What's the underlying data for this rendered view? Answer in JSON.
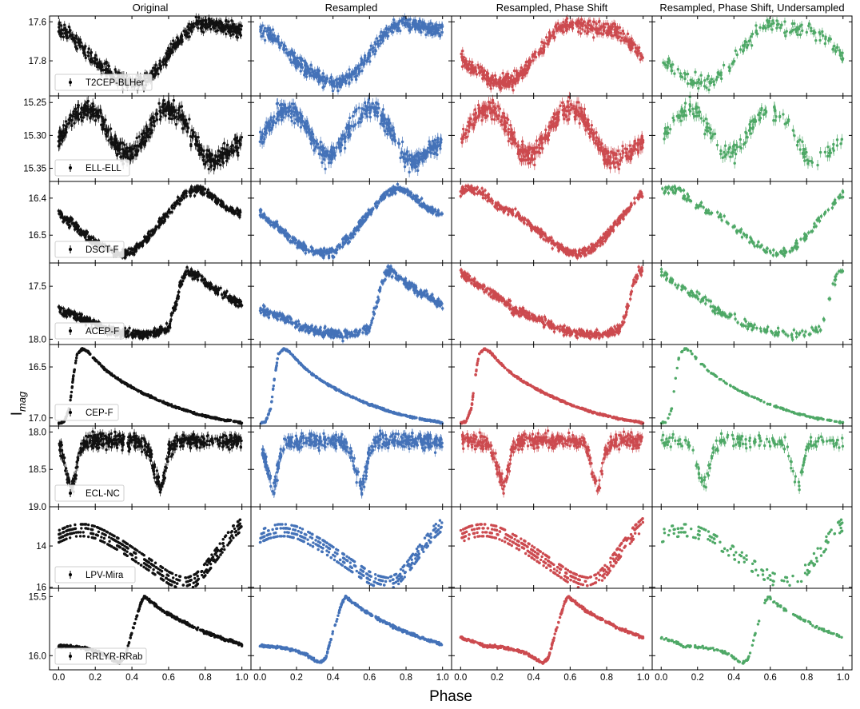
{
  "figure": {
    "xlabel": "Phase",
    "ylabel": "I",
    "ylabel_sub": "mag",
    "columns": [
      "Original",
      "Resampled",
      "Resampled, Phase Shift",
      "Resampled, Phase Shift, Undersampled"
    ],
    "column_colors": [
      "#111111",
      "#4472b8",
      "#cc4a4f",
      "#4ea866"
    ],
    "x_ticks": [
      "0.0",
      "0.2",
      "0.4",
      "0.6",
      "0.8",
      "1.0"
    ],
    "grid": false,
    "legend_position": "bottom-left"
  },
  "chart_data": [
    {
      "type": "scatter",
      "label": "T2CEP-BLHer",
      "ylim": [
        17.98,
        17.57
      ],
      "yticks": [
        17.6,
        17.8
      ],
      "ytick_labels": [
        "17.6",
        "17.8"
      ],
      "x": [
        0.0,
        0.05,
        0.1,
        0.15,
        0.2,
        0.25,
        0.3,
        0.35,
        0.4,
        0.45,
        0.5,
        0.55,
        0.6,
        0.65,
        0.7,
        0.75,
        0.8,
        0.85,
        0.9,
        0.95,
        1.0
      ],
      "y": [
        17.64,
        17.66,
        17.7,
        17.75,
        17.8,
        17.84,
        17.87,
        17.9,
        17.91,
        17.91,
        17.88,
        17.83,
        17.77,
        17.7,
        17.65,
        17.62,
        17.61,
        17.62,
        17.63,
        17.64,
        17.64
      ],
      "err": 0.025,
      "phase_shift": 0.18
    },
    {
      "type": "scatter",
      "label": "ELL-ELL",
      "ylim": [
        15.37,
        15.24
      ],
      "yticks": [
        15.25,
        15.3,
        15.35
      ],
      "ytick_labels": [
        "15.25",
        "15.30",
        "15.35"
      ],
      "x": [
        0.0,
        0.05,
        0.1,
        0.15,
        0.2,
        0.25,
        0.3,
        0.35,
        0.4,
        0.45,
        0.5,
        0.55,
        0.6,
        0.65,
        0.7,
        0.75,
        0.8,
        0.85,
        0.9,
        0.95,
        1.0
      ],
      "y": [
        15.31,
        15.285,
        15.265,
        15.26,
        15.265,
        15.285,
        15.31,
        15.33,
        15.33,
        15.31,
        15.285,
        15.265,
        15.26,
        15.265,
        15.285,
        15.31,
        15.335,
        15.34,
        15.33,
        15.32,
        15.31
      ],
      "err": 0.01,
      "phase_shift": 0.0
    },
    {
      "type": "scatter",
      "label": "DSCT-F",
      "ylim": [
        16.575,
        16.355
      ],
      "yticks": [
        16.4,
        16.5
      ],
      "ytick_labels": [
        "16.4",
        "16.5"
      ],
      "x": [
        0.0,
        0.05,
        0.1,
        0.15,
        0.2,
        0.25,
        0.3,
        0.35,
        0.4,
        0.45,
        0.5,
        0.55,
        0.6,
        0.65,
        0.7,
        0.75,
        0.8,
        0.85,
        0.9,
        0.95,
        1.0
      ],
      "y": [
        16.44,
        16.46,
        16.48,
        16.5,
        16.52,
        16.535,
        16.545,
        16.55,
        16.545,
        16.525,
        16.5,
        16.47,
        16.44,
        16.41,
        16.385,
        16.375,
        16.38,
        16.4,
        16.42,
        16.435,
        16.44
      ],
      "err": 0.008,
      "phase_shift": -0.3
    },
    {
      "type": "scatter",
      "label": "ACEP-F",
      "ylim": [
        18.05,
        17.28
      ],
      "yticks": [
        17.5,
        18.0
      ],
      "ytick_labels": [
        "17.5",
        "18.0"
      ],
      "x": [
        0.0,
        0.05,
        0.1,
        0.15,
        0.2,
        0.25,
        0.3,
        0.35,
        0.4,
        0.45,
        0.5,
        0.55,
        0.6,
        0.65,
        0.66,
        0.7,
        0.75,
        0.8,
        0.85,
        0.9,
        0.95,
        1.0
      ],
      "y": [
        17.72,
        17.75,
        17.78,
        17.82,
        17.86,
        17.9,
        17.92,
        17.94,
        17.95,
        17.96,
        17.95,
        17.93,
        17.9,
        17.6,
        17.5,
        17.35,
        17.4,
        17.47,
        17.53,
        17.58,
        17.63,
        17.68
      ],
      "err": 0.03,
      "phase_shift": -0.28
    },
    {
      "type": "scatter",
      "label": "CEP-F",
      "ylim": [
        17.08,
        16.28
      ],
      "yticks": [
        16.5,
        17.0
      ],
      "ytick_labels": [
        "16.5",
        "17.0"
      ],
      "x": [
        0.0,
        0.03,
        0.06,
        0.08,
        0.1,
        0.13,
        0.16,
        0.2,
        0.25,
        0.3,
        0.35,
        0.4,
        0.45,
        0.5,
        0.55,
        0.6,
        0.65,
        0.7,
        0.75,
        0.8,
        0.85,
        0.9,
        0.95,
        1.0
      ],
      "y": [
        17.05,
        17.04,
        16.9,
        16.6,
        16.38,
        16.32,
        16.35,
        16.43,
        16.52,
        16.59,
        16.65,
        16.7,
        16.75,
        16.79,
        16.83,
        16.87,
        16.9,
        16.93,
        16.96,
        16.98,
        17.0,
        17.02,
        17.03,
        17.05
      ],
      "err": 0.006,
      "phase_shift": 0.0
    },
    {
      "type": "scatter",
      "label": "ECL-NC",
      "ylim": [
        19.0,
        17.92
      ],
      "yticks": [
        18.0,
        18.5,
        19.0
      ],
      "ytick_labels": [
        "18.0",
        "18.5",
        "19.0"
      ],
      "x": [
        0.0,
        0.02,
        0.05,
        0.07,
        0.09,
        0.11,
        0.14,
        0.2,
        0.3,
        0.4,
        0.46,
        0.5,
        0.53,
        0.555,
        0.58,
        0.6,
        0.65,
        0.7,
        0.8,
        0.9,
        0.95,
        1.0
      ],
      "y": [
        18.15,
        18.3,
        18.6,
        18.78,
        18.6,
        18.3,
        18.15,
        18.12,
        18.12,
        18.12,
        18.15,
        18.3,
        18.55,
        18.75,
        18.55,
        18.25,
        18.12,
        18.12,
        18.12,
        18.12,
        18.13,
        18.15
      ],
      "err": 0.07,
      "phase_shift": 0.32
    },
    {
      "type": "scatter",
      "label": "LPV-Mira",
      "ylim": [
        16.05,
        12.1
      ],
      "yticks": [
        14,
        16
      ],
      "ytick_labels": [
        "14",
        "16"
      ],
      "x": [
        0.0,
        0.05,
        0.1,
        0.15,
        0.2,
        0.25,
        0.3,
        0.35,
        0.4,
        0.45,
        0.5,
        0.55,
        0.6,
        0.65,
        0.7,
        0.75,
        0.8,
        0.85,
        0.9,
        0.95,
        1.0
      ],
      "y": [
        13.6,
        13.4,
        13.3,
        13.3,
        13.4,
        13.6,
        13.85,
        14.1,
        14.4,
        14.7,
        15.0,
        15.3,
        15.6,
        15.8,
        15.9,
        15.7,
        15.2,
        14.6,
        14.0,
        13.4,
        13.0
      ],
      "cycle_offsets": [
        0,
        0.35,
        0.7,
        1.05
      ],
      "phase_shift": 0.0
    },
    {
      "type": "scatter",
      "label": "RRLYR-RRab",
      "ylim": [
        16.12,
        15.43
      ],
      "yticks": [
        15.5,
        16.0
      ],
      "ytick_labels": [
        "15.5",
        "16.0"
      ],
      "x": [
        0.0,
        0.05,
        0.1,
        0.15,
        0.2,
        0.25,
        0.3,
        0.33,
        0.36,
        0.4,
        0.45,
        0.47,
        0.5,
        0.55,
        0.6,
        0.65,
        0.7,
        0.75,
        0.8,
        0.85,
        0.9,
        0.95,
        1.0
      ],
      "y": [
        15.92,
        15.92,
        15.93,
        15.94,
        15.96,
        15.99,
        16.04,
        16.06,
        16.02,
        15.8,
        15.55,
        15.5,
        15.54,
        15.6,
        15.65,
        15.69,
        15.73,
        15.77,
        15.8,
        15.83,
        15.86,
        15.88,
        15.91
      ],
      "err": 0.008,
      "phase_shift": -0.12
    }
  ]
}
